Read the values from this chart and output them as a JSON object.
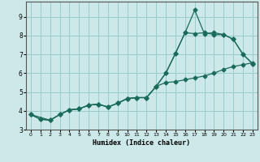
{
  "xlabel": "Humidex (Indice chaleur)",
  "bg_color": "#cce8e8",
  "grid_color": "#99cccc",
  "line_color": "#1a6b5a",
  "marker": "D",
  "markersize": 2.5,
  "linewidth": 0.9,
  "xlim": [
    -0.5,
    23.5
  ],
  "ylim": [
    3.0,
    9.8
  ],
  "yticks": [
    3,
    4,
    5,
    6,
    7,
    8,
    9
  ],
  "xticks": [
    0,
    1,
    2,
    3,
    4,
    5,
    6,
    7,
    8,
    9,
    10,
    11,
    12,
    13,
    14,
    15,
    16,
    17,
    18,
    19,
    20,
    21,
    22,
    23
  ],
  "series": [
    {
      "x": [
        0,
        1,
        2,
        3,
        4,
        5,
        6,
        7,
        8,
        9,
        10,
        11,
        12,
        13,
        14,
        15,
        16,
        17,
        18,
        19,
        20,
        21,
        22,
        23
      ],
      "y": [
        3.8,
        3.55,
        3.5,
        3.8,
        4.05,
        4.1,
        4.3,
        4.35,
        4.2,
        4.4,
        4.65,
        4.7,
        4.7,
        5.3,
        6.0,
        7.05,
        8.15,
        9.35,
        8.1,
        8.15,
        8.05,
        7.8,
        7.0,
        6.5
      ]
    },
    {
      "x": [
        0,
        2,
        3,
        4,
        5,
        6,
        7,
        8,
        9,
        10,
        11,
        12,
        13,
        14,
        15,
        16,
        17,
        18,
        19,
        20,
        21,
        22,
        23
      ],
      "y": [
        3.8,
        3.5,
        3.8,
        4.05,
        4.1,
        4.3,
        4.35,
        4.2,
        4.4,
        4.65,
        4.7,
        4.7,
        5.3,
        6.0,
        7.05,
        8.15,
        8.1,
        8.15,
        8.05,
        8.05,
        7.8,
        7.0,
        6.5
      ]
    },
    {
      "x": [
        0,
        1,
        2,
        3,
        4,
        5,
        6,
        7,
        8,
        9,
        10,
        11,
        12,
        13,
        14,
        15,
        16,
        17,
        18,
        19,
        20,
        21,
        22,
        23
      ],
      "y": [
        3.8,
        3.55,
        3.5,
        3.8,
        4.05,
        4.1,
        4.3,
        4.35,
        4.2,
        4.4,
        4.65,
        4.7,
        4.7,
        5.3,
        5.5,
        5.55,
        5.65,
        5.75,
        5.85,
        6.0,
        6.2,
        6.35,
        6.45,
        6.55
      ]
    }
  ]
}
